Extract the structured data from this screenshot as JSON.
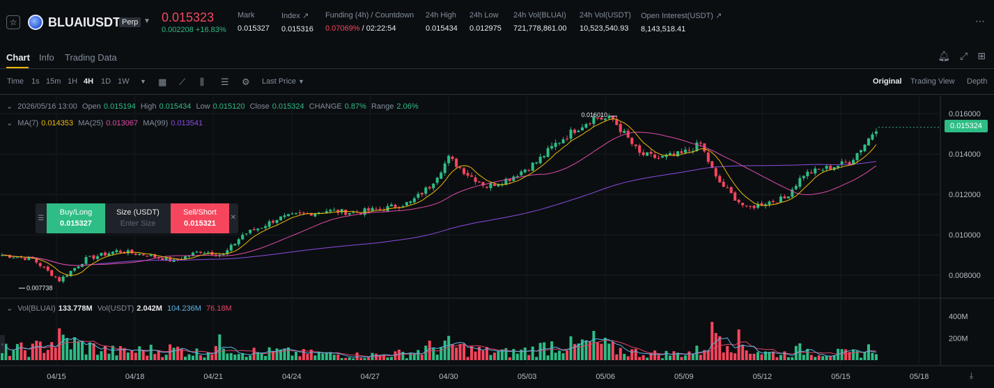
{
  "header": {
    "symbol": "BLUAIUSDT",
    "contract_type": "Perp",
    "last_price": "0.015323",
    "price_change": "0.002208 +16.83%",
    "stats": [
      {
        "label": "Mark",
        "value": "0.015327",
        "color": "#eaecef"
      },
      {
        "label": "Index ↗",
        "value": "0.015316",
        "color": "#eaecef"
      },
      {
        "label": "Funding (4h) / Countdown",
        "value": "0.07069%",
        "value2": " / 02:22:54",
        "color": "#f6465d"
      },
      {
        "label": "24h High",
        "value": "0.015434",
        "color": "#eaecef"
      },
      {
        "label": "24h Low",
        "value": "0.012975",
        "color": "#eaecef"
      },
      {
        "label": "24h Vol(BLUAI)",
        "value": "721,778,861.00",
        "color": "#eaecef"
      },
      {
        "label": "24h Vol(USDT)",
        "value": "10,523,540.93",
        "color": "#eaecef"
      },
      {
        "label": "Open Interest(USDT) ↗",
        "value": "8,143,518.41",
        "color": "#eaecef"
      }
    ]
  },
  "tabs": [
    "Chart",
    "Info",
    "Trading Data"
  ],
  "toolbar": {
    "time_label": "Time",
    "intervals": [
      "1s",
      "15m",
      "1H",
      "4H",
      "1D",
      "1W"
    ],
    "active_interval": "4H",
    "price_type": "Last Price",
    "views": [
      "Original",
      "Trading View",
      "Depth"
    ],
    "active_view": "Original"
  },
  "legend": {
    "ohlc": {
      "date": "2026/05/16 13:00",
      "open_label": "Open",
      "open": "0.015194",
      "high_label": "High",
      "high": "0.015434",
      "low_label": "Low",
      "low": "0.015120",
      "close_label": "Close",
      "close": "0.015324",
      "change_label": "CHANGE",
      "change": "0.87%",
      "range_label": "Range",
      "range": "2.06%"
    },
    "ma": {
      "ma7_label": "MA(7)",
      "ma7": "0.014353",
      "ma25_label": "MA(25)",
      "ma25": "0.013067",
      "ma99_label": "MA(99)",
      "ma99": "0.013541"
    },
    "vol": {
      "vol_bluai_label": "Vol(BLUAI)",
      "vol_bluai": "133.778M",
      "vol_usdt_label": "Vol(USDT)",
      "vol_usdt": "2.042M",
      "ma_a": "104.236M",
      "ma_b": "76.18M"
    }
  },
  "order_panel": {
    "buy_label": "Buy/Long",
    "buy_price": "0.015327",
    "size_label": "Size (USDT)",
    "size_placeholder": "Enter Size",
    "sell_label": "Sell/Short",
    "sell_price": "0.015321"
  },
  "current_price_tag": "0.015324",
  "chart_data": {
    "type": "candlestick",
    "y_ticks": [
      "0.016000",
      "0.014000",
      "0.012000",
      "0.010000",
      "0.008000"
    ],
    "y_tick_values": [
      0.016,
      0.014,
      0.012,
      0.01,
      0.008
    ],
    "ylim": [
      0.0069,
      0.0169
    ],
    "x_ticks": [
      "04/15",
      "04/18",
      "04/21",
      "04/24",
      "04/27",
      "04/30",
      "05/03",
      "05/06",
      "05/09",
      "05/12",
      "05/15",
      "05/18"
    ],
    "high_marker": "0.016010",
    "low_marker": "0.007738",
    "vol_ticks": [
      "400M",
      "200M"
    ],
    "vol_tick_values": [
      400,
      200
    ],
    "vol_ylim": [
      0,
      560
    ],
    "close_path": [
      [
        0,
        0.009
      ],
      [
        8,
        0.0088
      ],
      [
        15,
        0.00775
      ],
      [
        22,
        0.0088
      ],
      [
        30,
        0.0092
      ],
      [
        38,
        0.009
      ],
      [
        45,
        0.0087
      ],
      [
        52,
        0.0092
      ],
      [
        58,
        0.009
      ],
      [
        63,
        0.01
      ],
      [
        68,
        0.0104
      ],
      [
        72,
        0.0108
      ],
      [
        78,
        0.011
      ],
      [
        85,
        0.0112
      ],
      [
        92,
        0.0111
      ],
      [
        100,
        0.0113
      ],
      [
        107,
        0.0116
      ],
      [
        112,
        0.0124
      ],
      [
        117,
        0.0138
      ],
      [
        122,
        0.013
      ],
      [
        127,
        0.0124
      ],
      [
        133,
        0.0128
      ],
      [
        140,
        0.0136
      ],
      [
        145,
        0.0145
      ],
      [
        150,
        0.0152
      ],
      [
        155,
        0.0158
      ],
      [
        160,
        0.0157
      ],
      [
        163,
        0.015
      ],
      [
        167,
        0.014
      ],
      [
        172,
        0.0138
      ],
      [
        178,
        0.014
      ],
      [
        183,
        0.0145
      ],
      [
        187,
        0.0128
      ],
      [
        191,
        0.012
      ],
      [
        195,
        0.0113
      ],
      [
        200,
        0.0116
      ],
      [
        205,
        0.0118
      ],
      [
        210,
        0.013
      ],
      [
        214,
        0.0132
      ],
      [
        218,
        0.0134
      ],
      [
        222,
        0.0136
      ],
      [
        226,
        0.0145
      ],
      [
        229,
        0.0153
      ]
    ],
    "volume_profile": [
      [
        0,
        80
      ],
      [
        8,
        90
      ],
      [
        15,
        170
      ],
      [
        22,
        110
      ],
      [
        30,
        70
      ],
      [
        38,
        80
      ],
      [
        45,
        90
      ],
      [
        52,
        60
      ],
      [
        58,
        140
      ],
      [
        63,
        80
      ],
      [
        68,
        60
      ],
      [
        72,
        70
      ],
      [
        78,
        55
      ],
      [
        85,
        50
      ],
      [
        92,
        40
      ],
      [
        100,
        45
      ],
      [
        107,
        60
      ],
      [
        112,
        100
      ],
      [
        117,
        120
      ],
      [
        122,
        90
      ],
      [
        127,
        70
      ],
      [
        133,
        60
      ],
      [
        140,
        90
      ],
      [
        145,
        140
      ],
      [
        150,
        110
      ],
      [
        155,
        150
      ],
      [
        160,
        90
      ],
      [
        163,
        80
      ],
      [
        167,
        60
      ],
      [
        172,
        50
      ],
      [
        178,
        55
      ],
      [
        183,
        80
      ],
      [
        187,
        250
      ],
      [
        191,
        200
      ],
      [
        195,
        100
      ],
      [
        200,
        60
      ],
      [
        205,
        55
      ],
      [
        210,
        90
      ],
      [
        214,
        70
      ],
      [
        218,
        60
      ],
      [
        222,
        50
      ],
      [
        226,
        70
      ],
      [
        229,
        130
      ]
    ],
    "candle_count": 230,
    "up_color": "#2ebd85",
    "down_color": "#f6465d",
    "ma7_color": "#f0b90b",
    "ma25_color": "#e04ba8",
    "ma99_color": "#8a4ee0",
    "vol_ma_a_color": "#5ab8e6",
    "vol_ma_b_color": "#e0466a"
  }
}
